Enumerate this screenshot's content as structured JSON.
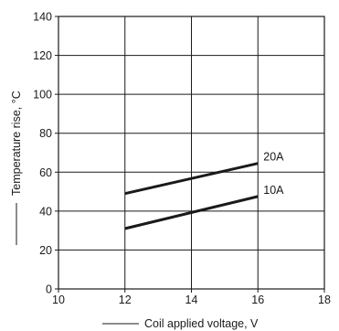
{
  "chart_data": {
    "type": "line",
    "xlabel": "Coil applied voltage, V",
    "ylabel": "Temperature rise, °C",
    "xlim": [
      10,
      18
    ],
    "ylim": [
      0,
      140
    ],
    "xticks": [
      "10",
      "12",
      "14",
      "16",
      "18"
    ],
    "yticks": [
      "0",
      "20",
      "40",
      "60",
      "80",
      "100",
      "120",
      "140"
    ],
    "grid": true,
    "series": [
      {
        "name": "20A",
        "x": [
          12,
          16
        ],
        "y": [
          49,
          64.5
        ]
      },
      {
        "name": "10A",
        "x": [
          12,
          16
        ],
        "y": [
          31,
          47.5
        ]
      }
    ],
    "colors": {
      "line": "#1a1a1a",
      "grid": "#1a1a1a"
    }
  }
}
